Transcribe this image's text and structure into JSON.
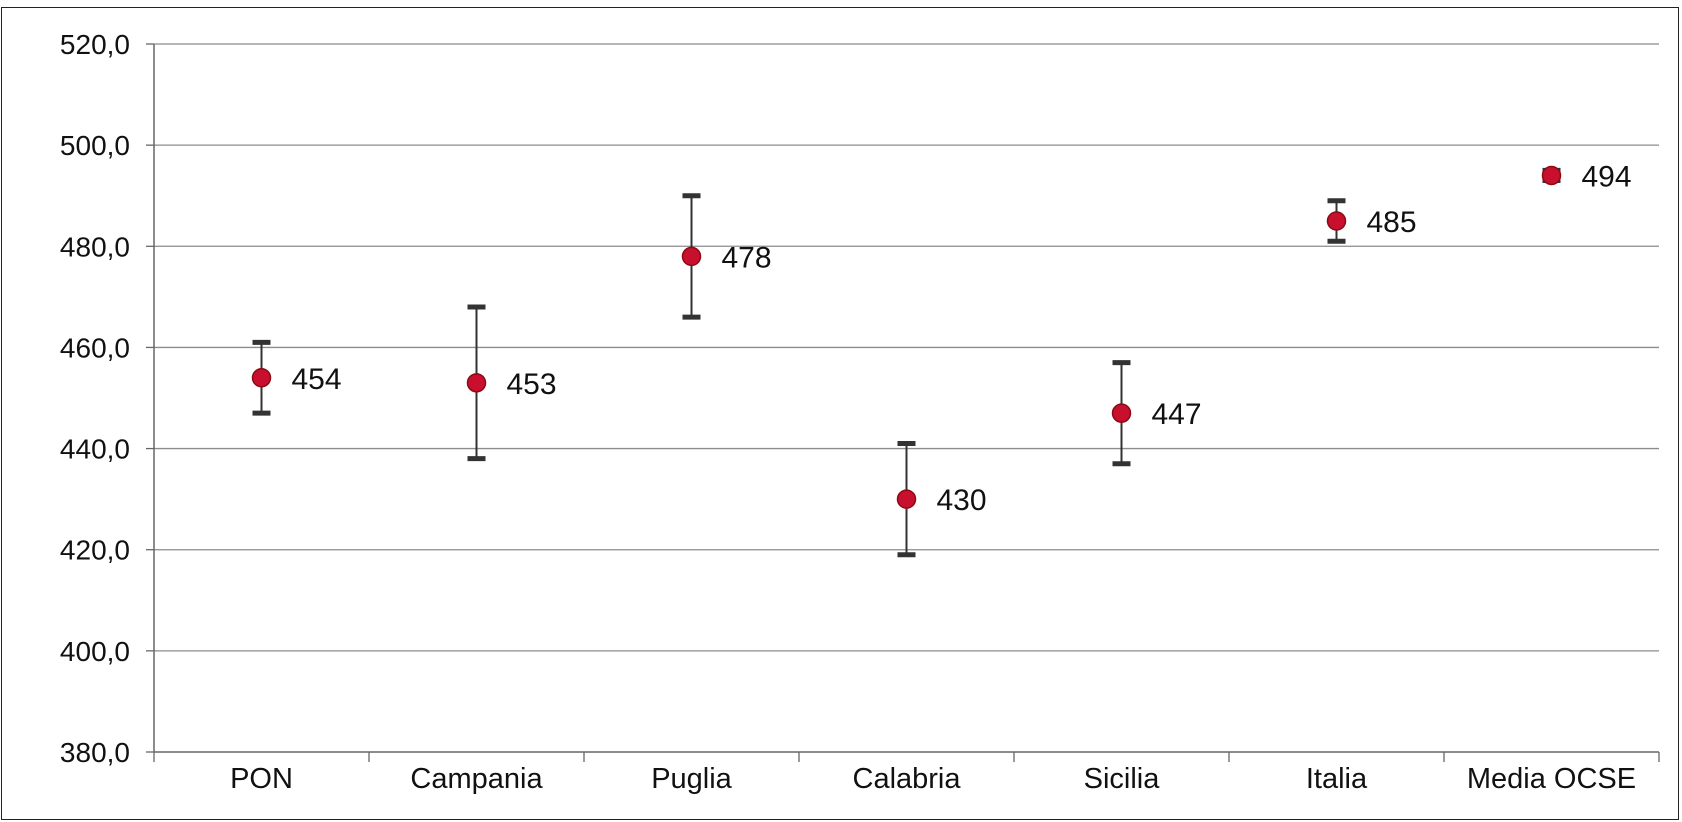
{
  "chart_data": {
    "type": "scatter",
    "title": "",
    "xlabel": "",
    "ylabel": "",
    "categories": [
      "PON",
      "Campania",
      "Puglia",
      "Calabria",
      "Sicilia",
      "Italia",
      "Media OCSE"
    ],
    "values": [
      454,
      453,
      478,
      430,
      447,
      485,
      494
    ],
    "error_low": [
      447,
      438,
      466,
      419,
      437,
      481,
      493
    ],
    "error_high": [
      461,
      468,
      490,
      441,
      457,
      489,
      495
    ],
    "data_labels": [
      "454",
      "453",
      "478",
      "430",
      "447",
      "485",
      "494"
    ],
    "ylim": [
      380,
      520
    ],
    "yticks": [
      380,
      400,
      420,
      440,
      460,
      480,
      500,
      520
    ],
    "ytick_labels": [
      "380,0",
      "400,0",
      "420,0",
      "440,0",
      "460,0",
      "480,0",
      "500,0",
      "520,0"
    ],
    "grid": true,
    "legend": "none",
    "colors": {
      "marker": "#c8102e",
      "marker_edge": "#8b0a14",
      "error_bar": "#333333",
      "grid": "#8c8c8c",
      "axis": "#666666"
    }
  }
}
